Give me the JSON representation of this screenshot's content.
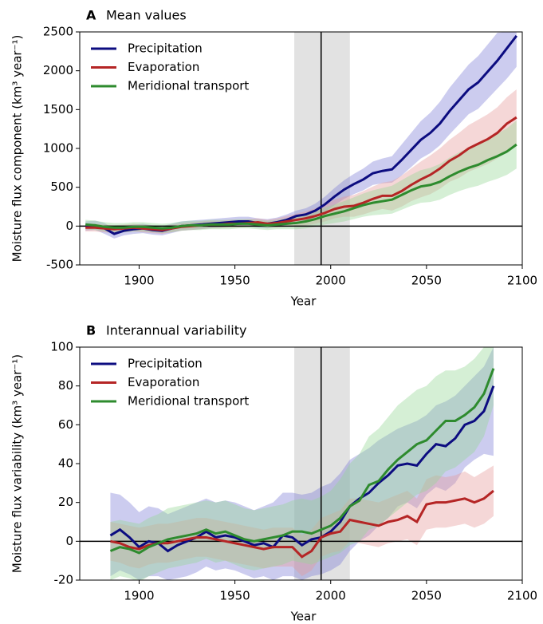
{
  "chart_data": [
    {
      "type": "line",
      "panel_label": "A",
      "title": "Mean values",
      "xlabel": "Year",
      "ylabel": "Moisture flux component (km³ year⁻¹)",
      "xlim": [
        1869,
        2100
      ],
      "xticks": [
        1900,
        1950,
        2000,
        2050,
        2100
      ],
      "ylim": [
        -500,
        2500
      ],
      "yticks": [
        -500,
        0,
        500,
        1000,
        1500,
        2000,
        2500
      ],
      "reference_year": 1995,
      "shaded_span": [
        1981,
        2010
      ],
      "legend": "upper left",
      "x": [
        1872,
        1877,
        1882,
        1887,
        1892,
        1897,
        1902,
        1907,
        1912,
        1917,
        1922,
        1927,
        1932,
        1937,
        1942,
        1947,
        1952,
        1957,
        1962,
        1967,
        1972,
        1977,
        1982,
        1987,
        1992,
        1997,
        2002,
        2007,
        2012,
        2017,
        2022,
        2027,
        2032,
        2037,
        2042,
        2047,
        2052,
        2057,
        2062,
        2067,
        2072,
        2077,
        2082,
        2087,
        2092,
        2097
      ],
      "series": [
        {
          "name": "Precipitation",
          "color": "#0c0c80",
          "band_color": "#7f7fd6",
          "values": [
            0,
            10,
            -30,
            -100,
            -60,
            -40,
            -30,
            -50,
            -60,
            -30,
            0,
            10,
            20,
            30,
            40,
            50,
            60,
            60,
            40,
            30,
            50,
            80,
            130,
            150,
            200,
            280,
            380,
            470,
            540,
            600,
            680,
            710,
            730,
            850,
            980,
            1110,
            1200,
            1320,
            1480,
            1620,
            1760,
            1850,
            1990,
            2130,
            2290,
            2450
          ],
          "upper": [
            60,
            70,
            40,
            -40,
            0,
            20,
            30,
            10,
            0,
            30,
            60,
            70,
            80,
            90,
            100,
            110,
            120,
            120,
            100,
            90,
            110,
            150,
            200,
            230,
            290,
            380,
            490,
            590,
            670,
            740,
            830,
            870,
            900,
            1050,
            1200,
            1350,
            1460,
            1600,
            1780,
            1930,
            2080,
            2190,
            2340,
            2490,
            2500,
            2500
          ],
          "lower": [
            -60,
            -50,
            -100,
            -160,
            -120,
            -100,
            -90,
            -110,
            -120,
            -90,
            -60,
            -50,
            -40,
            -30,
            -20,
            -10,
            0,
            0,
            -20,
            -30,
            -10,
            10,
            60,
            70,
            110,
            180,
            270,
            350,
            410,
            460,
            530,
            550,
            560,
            650,
            760,
            870,
            940,
            1040,
            1180,
            1310,
            1440,
            1510,
            1640,
            1770,
            1900,
            2050
          ]
        },
        {
          "name": "Evaporation",
          "color": "#b52525",
          "band_color": "#e69a9a",
          "values": [
            -20,
            -20,
            -30,
            -40,
            -30,
            -20,
            -30,
            -40,
            -50,
            -30,
            -10,
            0,
            10,
            20,
            20,
            30,
            30,
            40,
            50,
            30,
            40,
            60,
            80,
            100,
            130,
            170,
            220,
            250,
            260,
            300,
            350,
            390,
            390,
            450,
            530,
            600,
            660,
            740,
            840,
            910,
            1000,
            1060,
            1120,
            1200,
            1320,
            1400
          ],
          "upper": [
            30,
            30,
            20,
            10,
            20,
            30,
            20,
            10,
            0,
            20,
            40,
            50,
            60,
            70,
            70,
            80,
            80,
            90,
            100,
            80,
            100,
            130,
            160,
            190,
            230,
            280,
            340,
            380,
            400,
            450,
            510,
            560,
            580,
            650,
            740,
            830,
            910,
            1000,
            1110,
            1200,
            1300,
            1370,
            1440,
            1530,
            1660,
            1760
          ],
          "lower": [
            -70,
            -70,
            -80,
            -90,
            -80,
            -70,
            -80,
            -90,
            -100,
            -80,
            -60,
            -50,
            -40,
            -30,
            -30,
            -20,
            -20,
            -10,
            0,
            -20,
            -20,
            -10,
            0,
            10,
            30,
            60,
            100,
            120,
            120,
            150,
            190,
            220,
            200,
            250,
            320,
            370,
            410,
            480,
            570,
            620,
            700,
            750,
            800,
            870,
            980,
            1040
          ]
        },
        {
          "name": "Meridional transport",
          "color": "#2e8b2e",
          "band_color": "#97d697",
          "values": [
            20,
            10,
            -10,
            -20,
            -20,
            -10,
            -10,
            -20,
            -30,
            -20,
            0,
            10,
            10,
            20,
            20,
            20,
            30,
            30,
            20,
            10,
            20,
            30,
            40,
            60,
            90,
            130,
            160,
            190,
            230,
            270,
            300,
            320,
            340,
            400,
            460,
            510,
            530,
            570,
            640,
            700,
            750,
            790,
            850,
            900,
            960,
            1050
          ],
          "upper": [
            80,
            70,
            50,
            40,
            40,
            50,
            50,
            40,
            30,
            40,
            60,
            70,
            70,
            80,
            80,
            80,
            90,
            90,
            80,
            70,
            80,
            100,
            120,
            150,
            190,
            240,
            280,
            320,
            370,
            420,
            460,
            490,
            520,
            590,
            660,
            720,
            750,
            800,
            880,
            950,
            1010,
            1060,
            1130,
            1190,
            1260,
            1360
          ],
          "lower": [
            -40,
            -50,
            -70,
            -80,
            -80,
            -70,
            -70,
            -80,
            -90,
            -80,
            -60,
            -50,
            -50,
            -40,
            -40,
            -40,
            -30,
            -30,
            -40,
            -50,
            -40,
            -40,
            -40,
            -30,
            -10,
            20,
            40,
            60,
            90,
            120,
            140,
            150,
            160,
            210,
            260,
            300,
            310,
            340,
            400,
            450,
            490,
            520,
            570,
            610,
            660,
            740
          ]
        }
      ]
    },
    {
      "type": "line",
      "panel_label": "B",
      "title": "Interannual variability",
      "xlabel": "Year",
      "ylabel": "Moisture flux variability (km³ year⁻¹)",
      "xlim": [
        1869,
        2100
      ],
      "xticks": [
        1900,
        1950,
        2000,
        2050,
        2100
      ],
      "ylim": [
        -20,
        100
      ],
      "yticks": [
        -20,
        0,
        20,
        40,
        60,
        80,
        100
      ],
      "reference_year": 1995,
      "shaded_span": [
        1981,
        2010
      ],
      "legend": "upper left",
      "x": [
        1885,
        1890,
        1895,
        1900,
        1905,
        1910,
        1915,
        1920,
        1925,
        1930,
        1935,
        1940,
        1945,
        1950,
        1955,
        1960,
        1965,
        1970,
        1975,
        1980,
        1985,
        1990,
        1995,
        2000,
        2005,
        2010,
        2015,
        2020,
        2025,
        2030,
        2035,
        2040,
        2045,
        2050,
        2055,
        2060,
        2065,
        2070,
        2075,
        2080,
        2085
      ],
      "series": [
        {
          "name": "Precipitation",
          "color": "#0c0c80",
          "band_color": "#7f7fd6",
          "values": [
            3,
            6,
            2,
            -3,
            0,
            -1,
            -5,
            -2,
            0,
            2,
            5,
            2,
            3,
            2,
            0,
            -2,
            -1,
            -3,
            3,
            2,
            -2,
            1,
            2,
            5,
            10,
            18,
            22,
            25,
            30,
            34,
            39,
            40,
            39,
            45,
            50,
            49,
            53,
            60,
            62,
            67,
            80
          ],
          "upper": [
            25,
            24,
            20,
            15,
            18,
            17,
            14,
            16,
            18,
            20,
            22,
            20,
            21,
            20,
            18,
            16,
            18,
            20,
            25,
            25,
            24,
            25,
            28,
            30,
            35,
            42,
            45,
            48,
            52,
            55,
            58,
            60,
            62,
            65,
            70,
            72,
            75,
            80,
            85,
            90,
            100
          ],
          "lower": [
            -18,
            -15,
            -17,
            -20,
            -18,
            -18,
            -20,
            -19,
            -18,
            -16,
            -13,
            -15,
            -14,
            -15,
            -17,
            -19,
            -18,
            -20,
            -18,
            -18,
            -20,
            -18,
            -17,
            -15,
            -12,
            -5,
            0,
            3,
            8,
            12,
            18,
            20,
            17,
            24,
            28,
            26,
            30,
            38,
            42,
            45,
            44
          ]
        },
        {
          "name": "Evaporation",
          "color": "#b52525",
          "band_color": "#e69a9a",
          "values": [
            0,
            -1,
            -3,
            -4,
            -2,
            -1,
            -1,
            0,
            1,
            2,
            2,
            1,
            0,
            -1,
            -2,
            -3,
            -4,
            -3,
            -3,
            -3,
            -8,
            -5,
            2,
            4,
            5,
            11,
            10,
            9,
            8,
            10,
            11,
            13,
            10,
            19,
            20,
            20,
            21,
            22,
            20,
            22,
            26
          ],
          "upper": [
            10,
            9,
            8,
            7,
            8,
            9,
            9,
            10,
            11,
            12,
            12,
            11,
            10,
            9,
            8,
            7,
            6,
            7,
            7,
            7,
            3,
            6,
            12,
            14,
            16,
            22,
            22,
            21,
            20,
            22,
            24,
            26,
            22,
            32,
            34,
            33,
            34,
            36,
            33,
            36,
            39
          ],
          "lower": [
            -10,
            -11,
            -13,
            -14,
            -12,
            -11,
            -11,
            -10,
            -9,
            -8,
            -8,
            -9,
            -10,
            -11,
            -12,
            -13,
            -14,
            -13,
            -13,
            -13,
            -18,
            -15,
            -8,
            -6,
            -5,
            0,
            -1,
            -2,
            -3,
            -1,
            0,
            1,
            -2,
            6,
            7,
            7,
            8,
            9,
            7,
            9,
            13
          ]
        },
        {
          "name": "Meridional transport",
          "color": "#2e8b2e",
          "band_color": "#97d697",
          "values": [
            -5,
            -3,
            -4,
            -6,
            -3,
            -1,
            1,
            2,
            3,
            4,
            6,
            4,
            5,
            3,
            1,
            0,
            1,
            2,
            3,
            5,
            5,
            4,
            6,
            8,
            12,
            18,
            21,
            29,
            31,
            37,
            42,
            46,
            50,
            52,
            57,
            62,
            62,
            65,
            69,
            76,
            89
          ],
          "upper": [
            10,
            11,
            10,
            9,
            12,
            14,
            17,
            18,
            19,
            20,
            21,
            20,
            21,
            19,
            17,
            16,
            17,
            18,
            19,
            21,
            22,
            21,
            23,
            26,
            32,
            40,
            45,
            54,
            58,
            64,
            70,
            74,
            78,
            80,
            85,
            88,
            88,
            90,
            94,
            100,
            100
          ],
          "lower": [
            -20,
            -18,
            -19,
            -21,
            -18,
            -16,
            -14,
            -13,
            -12,
            -11,
            -9,
            -11,
            -10,
            -12,
            -14,
            -15,
            -14,
            -13,
            -12,
            -10,
            -11,
            -12,
            -10,
            -8,
            -6,
            -2,
            0,
            6,
            8,
            12,
            16,
            20,
            24,
            26,
            30,
            36,
            38,
            42,
            46,
            54,
            70
          ]
        }
      ]
    }
  ]
}
